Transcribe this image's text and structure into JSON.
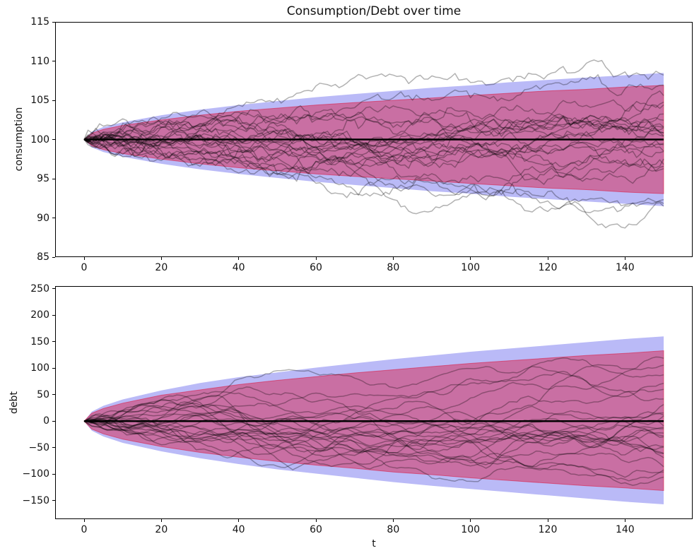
{
  "figure": {
    "title": "Consumption/Debt over time",
    "background": "#ffffff"
  },
  "colors": {
    "outer_band_fill": "rgba(25,25,230,0.30)",
    "inner_band_fill": "rgba(220,20,60,0.45)",
    "inner_band_edge": "rgba(220,20,60,0.55)",
    "sample_path": "rgba(0,0,0,0.30)",
    "mean_line": "#000000",
    "spine": "#000000",
    "tick_text": "#111111"
  },
  "chart_data": [
    {
      "type": "area",
      "name": "consumption-panel",
      "ylabel": "consumption",
      "xlabel": "",
      "xlim": [
        -7.5,
        157.5
      ],
      "ylim": [
        85,
        115
      ],
      "xticks": [
        0,
        20,
        40,
        60,
        80,
        100,
        120,
        140
      ],
      "xtick_labels": [
        "0",
        "20",
        "40",
        "60",
        "80",
        "100",
        "120",
        "140"
      ],
      "yticks": [
        85,
        90,
        95,
        100,
        105,
        110,
        115
      ],
      "ytick_labels": [
        "85",
        "90",
        "95",
        "100",
        "105",
        "110",
        "115"
      ],
      "mean_value": 100,
      "t": [
        0,
        2,
        5,
        10,
        20,
        30,
        40,
        50,
        60,
        70,
        80,
        90,
        100,
        110,
        120,
        130,
        140,
        150
      ],
      "bands": {
        "outer_upper": [
          100,
          101.0,
          101.6,
          102.2,
          103.1,
          103.8,
          104.4,
          104.9,
          105.4,
          105.8,
          106.2,
          106.6,
          106.9,
          107.3,
          107.6,
          107.9,
          108.2,
          108.5
        ],
        "outer_lower": [
          100,
          99.0,
          98.4,
          97.8,
          96.9,
          96.2,
          95.6,
          95.1,
          94.6,
          94.2,
          93.8,
          93.4,
          93.1,
          92.7,
          92.4,
          92.1,
          91.8,
          91.5
        ],
        "inner_upper": [
          100,
          100.8,
          101.3,
          101.8,
          102.5,
          103.1,
          103.6,
          104.0,
          104.4,
          104.7,
          105.0,
          105.3,
          105.6,
          105.9,
          106.2,
          106.4,
          106.7,
          106.9
        ],
        "inner_lower": [
          100,
          99.2,
          98.7,
          98.2,
          97.5,
          96.9,
          96.4,
          96.0,
          95.6,
          95.3,
          95.0,
          94.7,
          94.4,
          94.1,
          93.8,
          93.6,
          93.3,
          93.1
        ]
      },
      "sample_paths": {
        "count": 25,
        "start": 100,
        "step_sigma": 0.35,
        "ar_coeff": 0,
        "seed": 20,
        "steps": 150
      }
    },
    {
      "type": "area",
      "name": "debt-panel",
      "ylabel": "debt",
      "xlabel": "t",
      "xlim": [
        -7.5,
        157.5
      ],
      "ylim": [
        -185,
        255
      ],
      "xticks": [
        0,
        20,
        40,
        60,
        80,
        100,
        120,
        140
      ],
      "xtick_labels": [
        "0",
        "20",
        "40",
        "60",
        "80",
        "100",
        "120",
        "140"
      ],
      "yticks": [
        -150,
        -100,
        -50,
        0,
        50,
        100,
        150,
        200,
        250
      ],
      "ytick_labels": [
        "−150",
        "−100",
        "−50",
        "0",
        "50",
        "100",
        "150",
        "200",
        "250"
      ],
      "mean_value": 0,
      "t": [
        0,
        2,
        5,
        10,
        20,
        30,
        40,
        50,
        60,
        70,
        80,
        90,
        100,
        110,
        120,
        130,
        140,
        150
      ],
      "bands": {
        "outer_upper": [
          0,
          18,
          29,
          41,
          58,
          72,
          83,
          92,
          101,
          109,
          117,
          124,
          131,
          137,
          143,
          149,
          155,
          160
        ],
        "outer_lower": [
          0,
          -18,
          -29,
          -41,
          -57,
          -70,
          -81,
          -91,
          -99,
          -107,
          -115,
          -122,
          -128,
          -134,
          -140,
          -146,
          -152,
          -157
        ],
        "inner_upper": [
          0,
          15,
          24,
          34,
          49,
          59,
          69,
          77,
          84,
          91,
          97,
          103,
          109,
          114,
          119,
          124,
          128,
          133
        ],
        "inner_lower": [
          0,
          -15,
          -24,
          -34,
          -48,
          -59,
          -68,
          -76,
          -83,
          -89,
          -96,
          -101,
          -107,
          -112,
          -117,
          -122,
          -126,
          -131
        ]
      },
      "sample_paths": {
        "count": 25,
        "start": 0,
        "step_sigma": 2.1,
        "ar_coeff": 0.68,
        "seed": 77,
        "steps": 150
      }
    }
  ]
}
